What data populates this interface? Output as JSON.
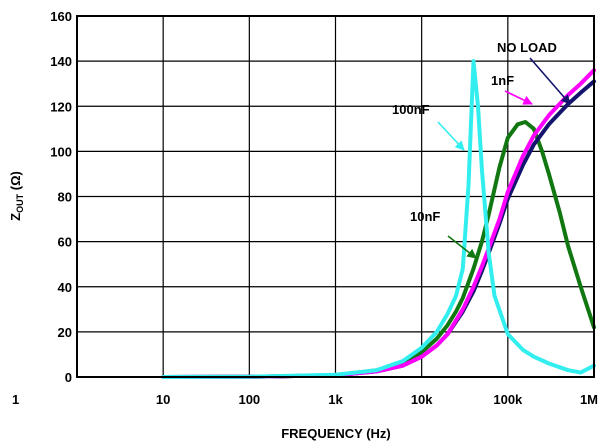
{
  "chart_data": {
    "type": "line",
    "title": "",
    "xlabel": "FREQUENCY (Hz)",
    "ylabel": "ZOUT (Ω)",
    "ylabel_main": "Z",
    "ylabel_sub": "OUT",
    "ylabel_unit": " (Ω)",
    "x_scale": "log",
    "xlim": [
      1,
      1000000
    ],
    "ylim": [
      0,
      160
    ],
    "grid": true,
    "x_ticks": [
      {
        "value": 1,
        "label": "1"
      },
      {
        "value": 10,
        "label": "10"
      },
      {
        "value": 100,
        "label": "100"
      },
      {
        "value": 1000,
        "label": "1k"
      },
      {
        "value": 10000,
        "label": "10k"
      },
      {
        "value": 100000,
        "label": "100k"
      },
      {
        "value": 1000000,
        "label": "1M"
      }
    ],
    "y_ticks": [
      0,
      20,
      40,
      60,
      80,
      100,
      120,
      140,
      160
    ],
    "series": [
      {
        "name": "NO LOAD",
        "color": "#14146e",
        "x": [
          10,
          100,
          1000,
          3000,
          6000,
          10000,
          15000,
          20000,
          30000,
          40000,
          50000,
          60000,
          80000,
          100000,
          150000,
          200000,
          300000,
          500000,
          700000,
          1000000
        ],
        "y": [
          0,
          0.1,
          0.8,
          2.5,
          5,
          9,
          14,
          19,
          29,
          38,
          47,
          55,
          68,
          79,
          94,
          103,
          112,
          121,
          126,
          131
        ]
      },
      {
        "name": "1nF",
        "color": "#ff00ff",
        "x": [
          10,
          100,
          1000,
          3000,
          6000,
          10000,
          15000,
          20000,
          30000,
          40000,
          50000,
          60000,
          80000,
          100000,
          150000,
          200000,
          300000,
          500000,
          700000,
          1000000
        ],
        "y": [
          0,
          0.1,
          0.8,
          2.5,
          5,
          9,
          14,
          19,
          30,
          40,
          49,
          57,
          70,
          82,
          98,
          107,
          116,
          125,
          130,
          136
        ]
      },
      {
        "name": "10nF",
        "color": "#117711",
        "x": [
          10,
          100,
          1000,
          3000,
          6000,
          10000,
          15000,
          20000,
          25000,
          30000,
          40000,
          50000,
          60000,
          80000,
          100000,
          130000,
          160000,
          200000,
          250000,
          300000,
          400000,
          500000,
          700000,
          1000000
        ],
        "y": [
          0,
          0.1,
          0.8,
          3,
          6,
          11,
          17,
          23,
          29,
          35,
          48,
          60,
          72,
          93,
          106,
          112,
          113,
          110,
          100,
          90,
          73,
          58,
          40,
          22
        ]
      },
      {
        "name": "100nF",
        "color": "#33eeee",
        "x": [
          10,
          100,
          1000,
          3000,
          6000,
          10000,
          15000,
          20000,
          25000,
          30000,
          35000,
          40000,
          45000,
          50000,
          60000,
          70000,
          100000,
          150000,
          200000,
          300000,
          500000,
          700000,
          1000000
        ],
        "y": [
          0,
          0.1,
          1,
          3,
          7,
          13,
          20,
          28,
          36,
          48,
          85,
          140,
          120,
          92,
          55,
          36,
          19,
          12,
          9,
          6,
          3,
          2,
          5
        ]
      }
    ],
    "annotations": [
      {
        "text": "NO LOAD",
        "series": "NO LOAD"
      },
      {
        "text": "1nF",
        "series": "1nF"
      },
      {
        "text": "100nF",
        "series": "100nF"
      },
      {
        "text": "10nF",
        "series": "10nF"
      }
    ]
  }
}
